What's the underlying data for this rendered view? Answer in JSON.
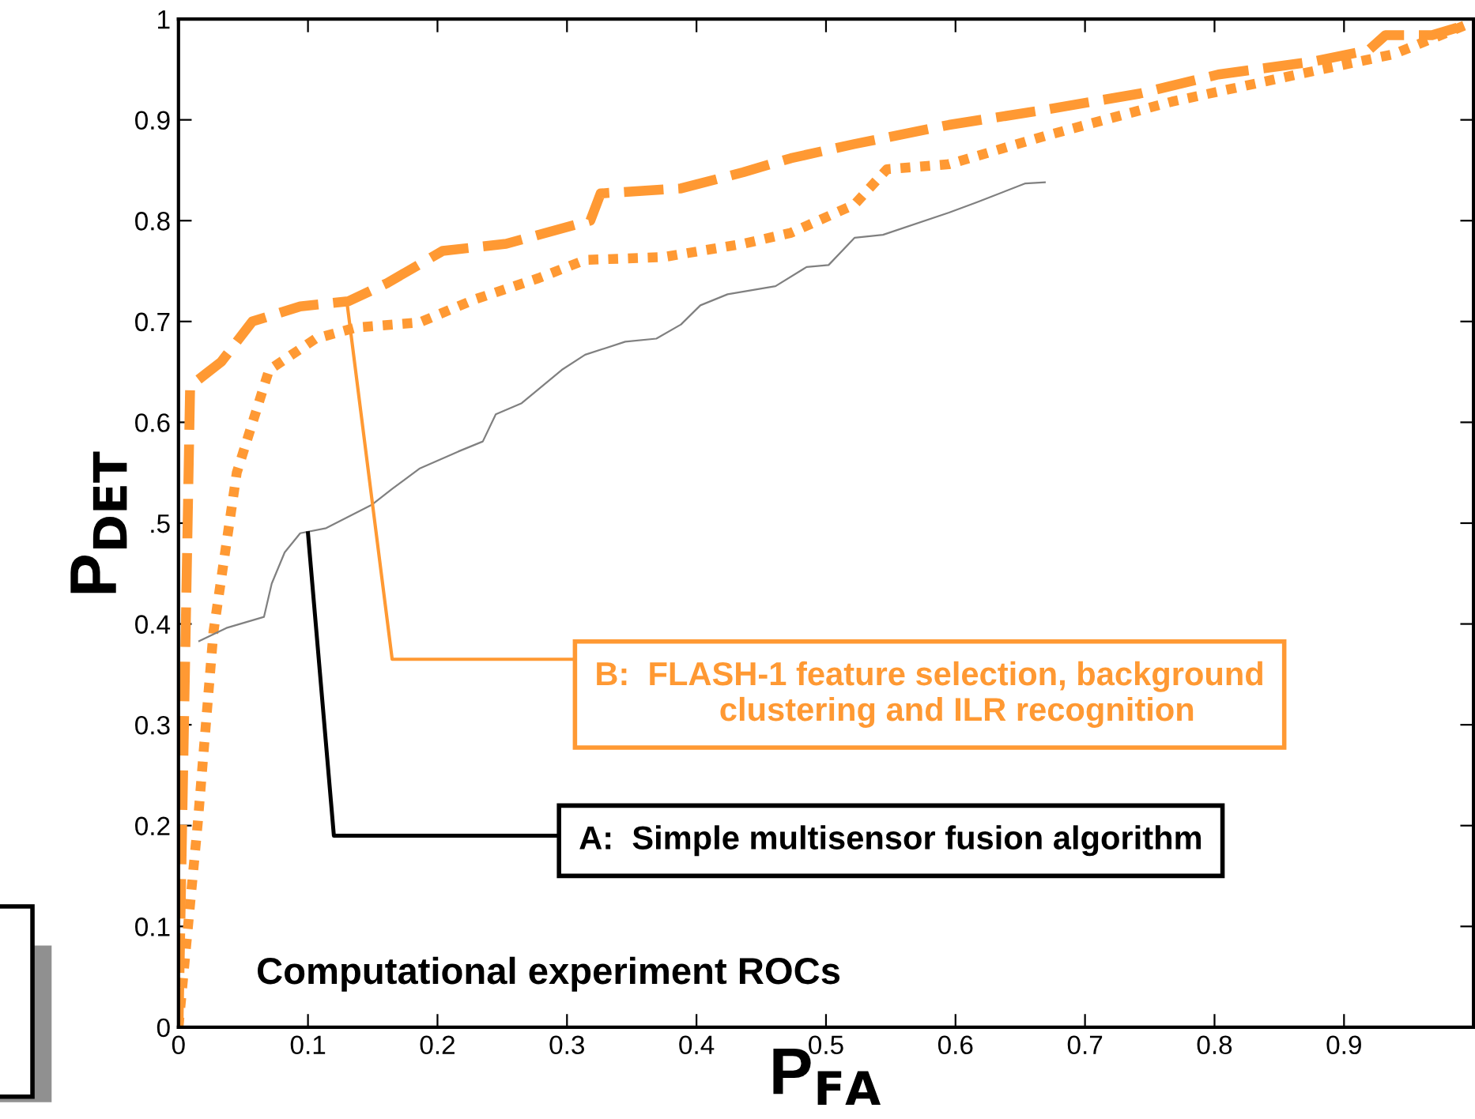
{
  "chart_data": {
    "type": "line",
    "title": "Computational experiment ROCs",
    "xlabel": "P$_{FA}$",
    "ylabel": "P$_{DET}$",
    "xlim": [
      0,
      1
    ],
    "ylim": [
      0,
      1
    ],
    "xticks": [
      0,
      0.1,
      0.2,
      0.3,
      0.4,
      0.5,
      0.6,
      0.7,
      0.8,
      0.9
    ],
    "yticks": [
      0,
      0.1,
      0.2,
      0.3,
      0.4,
      {
        "value": 0.5,
        "label": ".5"
      },
      0.6,
      0.7,
      0.8,
      0.9,
      1
    ],
    "grid": false,
    "series": [
      {
        "color": "#ff9933",
        "line_style": "dashed",
        "x": [
          0,
          0.009,
          0.033,
          0.057,
          0.094,
          0.131,
          0.161,
          0.204,
          0.253,
          0.318,
          0.326,
          0.388,
          0.436,
          0.473,
          0.522,
          0.595,
          0.669,
          0.742,
          0.803,
          0.877,
          0.919,
          0.932,
          0.968,
          0.994
        ],
        "values": [
          0,
          0.636,
          0.66,
          0.7,
          0.715,
          0.72,
          0.738,
          0.77,
          0.777,
          0.8,
          0.827,
          0.832,
          0.848,
          0.862,
          0.876,
          0.895,
          0.91,
          0.926,
          0.945,
          0.958,
          0.969,
          0.984,
          0.984,
          0.994
        ]
      },
      {
        "color": "#ff9933",
        "line_style": "dotted",
        "x": [
          0,
          0.015,
          0.027,
          0.045,
          0.07,
          0.106,
          0.137,
          0.186,
          0.229,
          0.278,
          0.314,
          0.375,
          0.436,
          0.473,
          0.522,
          0.547,
          0.595,
          0.669,
          0.767,
          0.864,
          0.938,
          0.994
        ],
        "values": [
          0,
          0.204,
          0.392,
          0.55,
          0.652,
          0.683,
          0.694,
          0.699,
          0.722,
          0.743,
          0.761,
          0.764,
          0.777,
          0.788,
          0.816,
          0.851,
          0.856,
          0.884,
          0.918,
          0.945,
          0.965,
          0.994
        ]
      },
      {
        "color": "#808080",
        "line_style": "solid",
        "x": [
          0.016,
          0.037,
          0.066,
          0.072,
          0.082,
          0.094,
          0.114,
          0.149,
          0.165,
          0.186,
          0.216,
          0.235,
          0.245,
          0.265,
          0.296,
          0.314,
          0.345,
          0.369,
          0.388,
          0.403,
          0.424,
          0.461,
          0.485,
          0.502,
          0.522,
          0.544,
          0.595,
          0.616,
          0.654,
          0.669
        ],
        "values": [
          0.383,
          0.396,
          0.407,
          0.44,
          0.471,
          0.49,
          0.495,
          0.518,
          0.534,
          0.554,
          0.571,
          0.581,
          0.608,
          0.619,
          0.652,
          0.667,
          0.68,
          0.683,
          0.697,
          0.716,
          0.727,
          0.735,
          0.754,
          0.756,
          0.783,
          0.786,
          0.808,
          0.818,
          0.837,
          0.838
        ]
      }
    ],
    "annotations": [
      {
        "text": "B:  FLASH-1 feature selection, background\n      clustering and ILR recognition",
        "x": 0.13,
        "y": 0.72
      },
      {
        "text": "A:  Simple multisensor fusion algorithm",
        "x": 0.1,
        "y": 0.49
      }
    ]
  }
}
